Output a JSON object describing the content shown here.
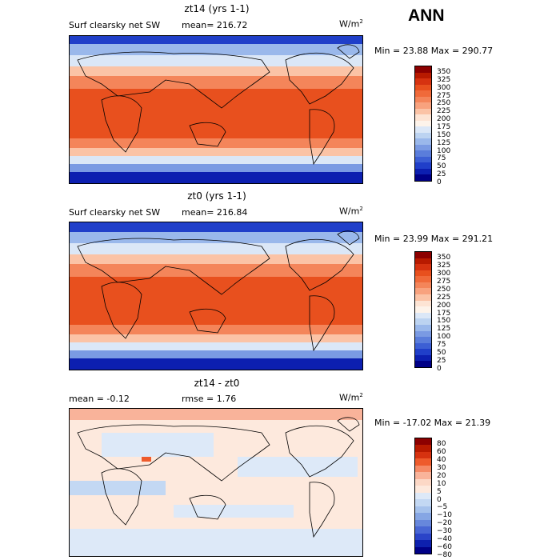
{
  "season": "ANN",
  "colors": {
    "abs_scale": [
      "#8c0000",
      "#b81a00",
      "#d63210",
      "#e8501e",
      "#f06a3a",
      "#f4855a",
      "#f8a27e",
      "#fbc3a6",
      "#fde4d4",
      "#fdf3ea",
      "#dbe7f7",
      "#bcd3f1",
      "#9ab8eb",
      "#7a9ae3",
      "#5a7ddb",
      "#3c5fd4",
      "#203fc9",
      "#0c1fb0",
      "#000086"
    ],
    "diff_scale": [
      "#8c0000",
      "#b81a00",
      "#d63210",
      "#ee5b2c",
      "#f58a66",
      "#f9b39a",
      "#fcd8c6",
      "#fde9dd",
      "#dde9f8",
      "#c3d8f3",
      "#a6c2ec",
      "#86a6e4",
      "#6787dc",
      "#4866d4",
      "#2a44c8",
      "#0d20ae",
      "#000086"
    ]
  },
  "chart_data": [
    {
      "type": "heatmap",
      "title": "zt14 (yrs 1-1)",
      "left_label": "Surf clearsky net SW",
      "mean_text": "mean= 216.72",
      "units": "W/m",
      "units_sup": "2",
      "minmax_text": "Min =  23.88 Max = 290.77",
      "levels": [
        "350",
        "325",
        "300",
        "275",
        "250",
        "225",
        "200",
        "175",
        "150",
        "125",
        "100",
        "75",
        "50",
        "25",
        "0"
      ],
      "min": 23.88,
      "max": 290.77,
      "mean": 216.72
    },
    {
      "type": "heatmap",
      "title": "zt0 (yrs 1-1)",
      "left_label": "Surf clearsky net SW",
      "mean_text": "mean= 216.84",
      "units": "W/m",
      "units_sup": "2",
      "minmax_text": "Min =  23.99 Max = 291.21",
      "levels": [
        "350",
        "325",
        "300",
        "275",
        "250",
        "225",
        "200",
        "175",
        "150",
        "125",
        "100",
        "75",
        "50",
        "25",
        "0"
      ],
      "min": 23.99,
      "max": 291.21,
      "mean": 216.84
    },
    {
      "type": "heatmap",
      "title": "zt14 - zt0",
      "left_label": "mean =   -0.12",
      "mean_text": "rmse =    1.76",
      "units": "W/m",
      "units_sup": "2",
      "minmax_text": "Min = -17.02 Max =  21.39",
      "levels": [
        "80",
        "60",
        "40",
        "30",
        "20",
        "10",
        "5",
        "0",
        "−5",
        "−10",
        "−20",
        "−30",
        "−40",
        "−60",
        "−80"
      ],
      "min": -17.02,
      "max": 21.39,
      "mean": -0.12,
      "rmse": 1.76
    }
  ]
}
